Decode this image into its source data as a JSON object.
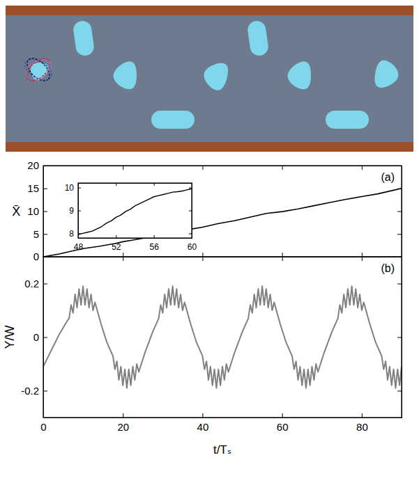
{
  "chart_data": [
    {
      "type": "line",
      "title": "(a)",
      "ylabel": "X̄",
      "x": [
        0,
        4,
        8,
        10,
        14,
        18,
        20,
        22,
        26,
        30,
        32,
        36,
        40,
        44,
        48,
        52,
        56,
        60,
        64,
        68,
        72,
        76,
        80,
        84,
        88,
        90
      ],
      "series": [
        {
          "color": "#000000",
          "values": [
            0,
            0.6,
            1.4,
            1.8,
            2.3,
            2.9,
            3.3,
            3.6,
            4.2,
            4.9,
            5.4,
            5.9,
            6.5,
            7.3,
            7.9,
            8.7,
            9.5,
            9.9,
            10.5,
            11.2,
            11.9,
            12.6,
            13.2,
            13.8,
            14.6,
            15.0
          ]
        }
      ],
      "xlim": [
        0,
        90
      ],
      "xticks": [
        0,
        20,
        40,
        60,
        80
      ],
      "ylim": [
        0,
        20
      ],
      "yticks": [
        0,
        5,
        10,
        15,
        20
      ],
      "tick_labels": "y"
    },
    {
      "type": "line",
      "x": [
        48,
        48.5,
        49,
        49.5,
        50,
        50.5,
        51,
        51.5,
        52,
        52.5,
        53,
        53.5,
        54,
        54.5,
        55,
        55.5,
        56,
        56.5,
        57,
        57.5,
        58,
        58.5,
        59,
        59.5,
        60
      ],
      "series": [
        {
          "color": "#000000",
          "values": [
            7.95,
            8.0,
            8.05,
            8.1,
            8.2,
            8.3,
            8.45,
            8.55,
            8.7,
            8.8,
            8.95,
            9.05,
            9.2,
            9.3,
            9.4,
            9.5,
            9.6,
            9.65,
            9.7,
            9.75,
            9.8,
            9.82,
            9.85,
            9.9,
            9.95
          ]
        }
      ],
      "xlim": [
        48,
        60
      ],
      "xticks": [
        48,
        52,
        56,
        60
      ],
      "ylim": [
        7.8,
        10.2
      ],
      "yticks": [
        8,
        9,
        10
      ]
    },
    {
      "type": "line",
      "title": "(b)",
      "xlabel": "t/Tₛ",
      "ylabel": "Y/W",
      "x": [
        0,
        2,
        4,
        6,
        6.5,
        7,
        7.5,
        8,
        8.5,
        9,
        9.5,
        10,
        10.5,
        11,
        11.5,
        12,
        12.5,
        13,
        14.5,
        16,
        17.5,
        18,
        18.5,
        19,
        19.5,
        20,
        20.5,
        21,
        21.5,
        22,
        22.5,
        23,
        23.5,
        24,
        25.5,
        27.5,
        29,
        29.5,
        30,
        30.5,
        31,
        31.5,
        32,
        32.5,
        33,
        33.5,
        34,
        34.5,
        35,
        35.5,
        37,
        38.5,
        40,
        40.5,
        41,
        41.5,
        42,
        42.5,
        43,
        43.5,
        44,
        44.5,
        45,
        45.5,
        46,
        46.5,
        48,
        50,
        51.5,
        52,
        52.5,
        53,
        53.5,
        54,
        54.5,
        55,
        55.5,
        56,
        56.5,
        57,
        57.5,
        58,
        59.5,
        61,
        62.5,
        63,
        63.5,
        64,
        64.5,
        65,
        65.5,
        66,
        66.5,
        67,
        67.5,
        68,
        68.5,
        69,
        70.5,
        72.5,
        74,
        74.5,
        75,
        75.5,
        76,
        76.5,
        77,
        77.5,
        78,
        78.5,
        79,
        79.5,
        80,
        80.5,
        82,
        83.5,
        85,
        85.5,
        86,
        86.5,
        87,
        87.5,
        88,
        88.5,
        89,
        89.5,
        90
      ],
      "series": [
        {
          "color": "#808080",
          "values": [
            -0.11,
            -0.05,
            0.01,
            0.06,
            0.07,
            0.12,
            0.09,
            0.16,
            0.11,
            0.18,
            0.12,
            0.19,
            0.12,
            0.18,
            0.11,
            0.16,
            0.1,
            0.13,
            0.05,
            -0.02,
            -0.07,
            -0.12,
            -0.09,
            -0.16,
            -0.11,
            -0.18,
            -0.12,
            -0.19,
            -0.12,
            -0.18,
            -0.11,
            -0.16,
            -0.1,
            -0.13,
            -0.06,
            0.02,
            0.07,
            0.12,
            0.09,
            0.16,
            0.11,
            0.18,
            0.12,
            0.19,
            0.12,
            0.18,
            0.11,
            0.16,
            0.1,
            0.13,
            0.05,
            -0.02,
            -0.07,
            -0.12,
            -0.09,
            -0.16,
            -0.11,
            -0.18,
            -0.12,
            -0.19,
            -0.12,
            -0.18,
            -0.11,
            -0.16,
            -0.1,
            -0.13,
            -0.06,
            0.02,
            0.07,
            0.12,
            0.09,
            0.16,
            0.11,
            0.18,
            0.12,
            0.19,
            0.12,
            0.18,
            0.11,
            0.16,
            0.1,
            0.13,
            0.05,
            -0.02,
            -0.07,
            -0.12,
            -0.09,
            -0.16,
            -0.11,
            -0.18,
            -0.12,
            -0.19,
            -0.12,
            -0.18,
            -0.11,
            -0.16,
            -0.1,
            -0.13,
            -0.06,
            0.02,
            0.07,
            0.12,
            0.09,
            0.16,
            0.11,
            0.18,
            0.12,
            0.19,
            0.12,
            0.18,
            0.11,
            0.16,
            0.1,
            0.13,
            0.05,
            -0.02,
            -0.07,
            -0.12,
            -0.09,
            -0.16,
            -0.11,
            -0.18,
            -0.12,
            -0.19,
            -0.12,
            -0.18,
            -0.11
          ]
        }
      ],
      "xlim": [
        0,
        90
      ],
      "xticks": [
        0,
        20,
        40,
        60,
        80
      ],
      "ylim": [
        -0.3,
        0.3
      ],
      "yticks": [
        -0.2,
        0,
        0.2
      ]
    }
  ]
}
